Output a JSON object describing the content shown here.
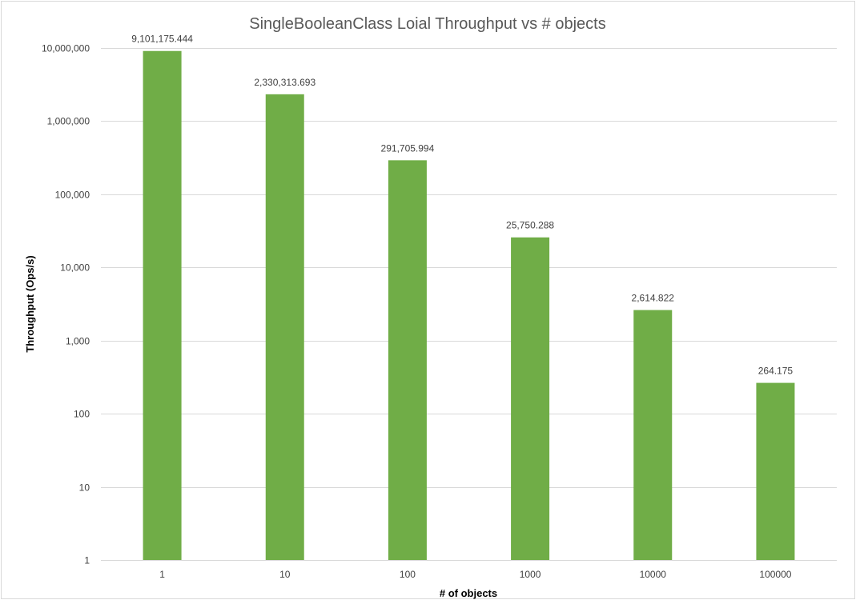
{
  "chart_data": {
    "type": "bar",
    "title": "SingleBooleanClass Loial Throughput vs # objects",
    "xlabel": "# of objects",
    "ylabel": "Throughput (Ops/s)",
    "yscale": "log",
    "ylim": [
      1,
      10000000
    ],
    "yticks": [
      1,
      10,
      100,
      1000,
      10000,
      100000,
      1000000,
      10000000
    ],
    "ytick_labels": [
      "1",
      "10",
      "100",
      "1,000",
      "10,000",
      "100,000",
      "1,000,000",
      "10,000,000"
    ],
    "categories": [
      "1",
      "10",
      "100",
      "1000",
      "10000",
      "100000"
    ],
    "values": [
      9101175.444,
      2330313.693,
      291705.994,
      25750.288,
      2614.822,
      264.175
    ],
    "data_labels": [
      "9,101,175.444",
      "2,330,313.693",
      "291,705.994",
      "25,750.288",
      "2,614.822",
      "264.175"
    ],
    "grid": true,
    "legend": "none",
    "colors": {
      "bar": "#70ad47",
      "grid": "#d9d9d9",
      "title": "#595959",
      "text": "#404040"
    }
  }
}
